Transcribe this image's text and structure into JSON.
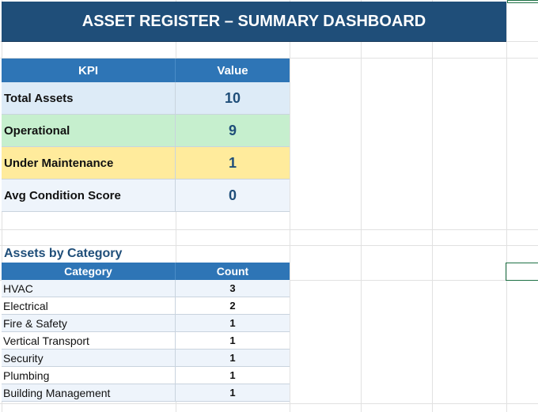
{
  "title": "ASSET REGISTER – SUMMARY DASHBOARD",
  "colors": {
    "banner": "#1f4e79",
    "header": "#2e75b6",
    "value_text": "#1f4e79",
    "row_blue": "#ddebf7",
    "row_green": "#c6efce",
    "row_yellow": "#ffeb9c",
    "row_lightblue": "#eef4fb",
    "selection": "#1e7145"
  },
  "kpi_table": {
    "headers": [
      "KPI",
      "Value"
    ],
    "rows": [
      {
        "label": "Total Assets",
        "value": "10",
        "color": "#ddebf7"
      },
      {
        "label": "Operational",
        "value": "9",
        "color": "#c6efce"
      },
      {
        "label": "Under Maintenance",
        "value": "1",
        "color": "#ffeb9c"
      },
      {
        "label": "Avg Condition Score",
        "value": "0",
        "color": "#eef4fb"
      }
    ]
  },
  "category_section": {
    "title": "Assets by Category",
    "headers": [
      "Category",
      "Count"
    ],
    "rows": [
      {
        "category": "HVAC",
        "count": "3",
        "color": "#eef4fb"
      },
      {
        "category": "Electrical",
        "count": "2",
        "color": "#ffffff"
      },
      {
        "category": "Fire & Safety",
        "count": "1",
        "color": "#eef4fb"
      },
      {
        "category": "Vertical Transport",
        "count": "1",
        "color": "#ffffff"
      },
      {
        "category": "Security",
        "count": "1",
        "color": "#eef4fb"
      },
      {
        "category": "Plumbing",
        "count": "1",
        "color": "#ffffff"
      },
      {
        "category": "Building Management",
        "count": "1",
        "color": "#eef4fb"
      }
    ]
  }
}
